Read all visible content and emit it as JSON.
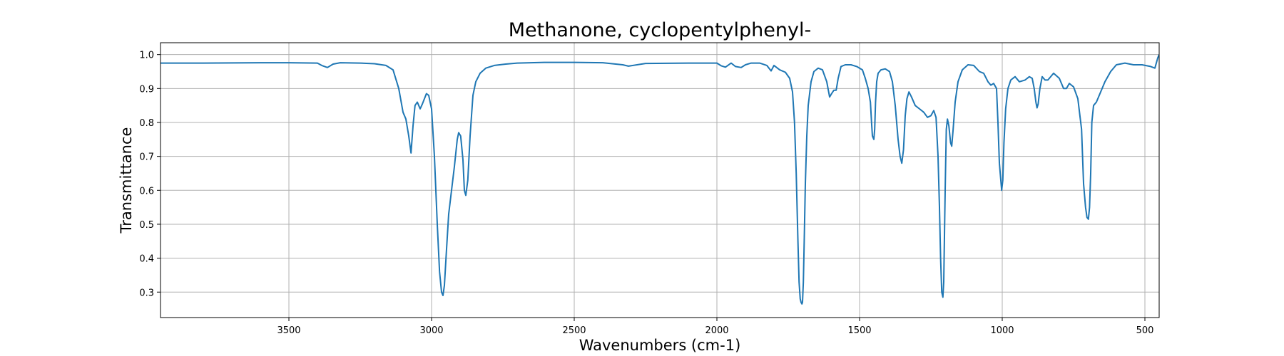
{
  "chart_data": {
    "type": "line",
    "title": "Methanone, cyclopentylphenyl-",
    "xlabel": "Wavenumbers (cm-1)",
    "ylabel": "Transmittance",
    "xlim": [
      3950,
      450
    ],
    "ylim": [
      0.225,
      1.035
    ],
    "x_ticks": [
      3500,
      3000,
      2500,
      2000,
      1500,
      1000,
      500
    ],
    "y_ticks": [
      0.3,
      0.4,
      0.5,
      0.6,
      0.7,
      0.8,
      0.9,
      1.0
    ],
    "grid": true,
    "series": [
      {
        "color": "#1f77b4",
        "x": [
          3950,
          3800,
          3600,
          3500,
          3400,
          3385,
          3365,
          3345,
          3320,
          3250,
          3200,
          3160,
          3135,
          3115,
          3100,
          3090,
          3080,
          3072,
          3065,
          3058,
          3050,
          3040,
          3032,
          3025,
          3018,
          3010,
          3000,
          2990,
          2980,
          2972,
          2965,
          2960,
          2955,
          2948,
          2940,
          2930,
          2920,
          2910,
          2905,
          2898,
          2890,
          2885,
          2880,
          2873,
          2865,
          2855,
          2845,
          2830,
          2810,
          2780,
          2740,
          2700,
          2600,
          2500,
          2400,
          2330,
          2310,
          2250,
          2100,
          2000,
          1985,
          1970,
          1950,
          1935,
          1915,
          1900,
          1880,
          1850,
          1825,
          1810,
          1800,
          1780,
          1760,
          1745,
          1735,
          1728,
          1722,
          1716,
          1712,
          1708,
          1705,
          1702,
          1700,
          1697,
          1694,
          1690,
          1685,
          1680,
          1670,
          1660,
          1645,
          1630,
          1615,
          1605,
          1598,
          1590,
          1582,
          1575,
          1565,
          1550,
          1530,
          1510,
          1490,
          1480,
          1470,
          1462,
          1458,
          1455,
          1450,
          1447,
          1444,
          1440,
          1435,
          1425,
          1410,
          1395,
          1385,
          1375,
          1365,
          1358,
          1352,
          1346,
          1340,
          1334,
          1327,
          1318,
          1305,
          1290,
          1275,
          1262,
          1250,
          1240,
          1232,
          1225,
          1220,
          1216,
          1212,
          1208,
          1205,
          1200,
          1196,
          1192,
          1187,
          1181,
          1177,
          1172,
          1165,
          1155,
          1140,
          1120,
          1100,
          1080,
          1065,
          1050,
          1040,
          1030,
          1020,
          1015,
          1010,
          1005,
          1002,
          998,
          994,
          988,
          980,
          970,
          955,
          940,
          920,
          905,
          895,
          888,
          882,
          878,
          874,
          868,
          860,
          850,
          840,
          820,
          800,
          785,
          775,
          765,
          750,
          735,
          722,
          715,
          708,
          703,
          698,
          694,
          690,
          686,
          680,
          670,
          660,
          640,
          620,
          600,
          570,
          540,
          510,
          480,
          465,
          455,
          450
        ],
        "values": [
          0.975,
          0.975,
          0.976,
          0.976,
          0.975,
          0.968,
          0.962,
          0.972,
          0.976,
          0.975,
          0.973,
          0.968,
          0.955,
          0.9,
          0.83,
          0.81,
          0.76,
          0.71,
          0.79,
          0.85,
          0.86,
          0.84,
          0.855,
          0.87,
          0.885,
          0.88,
          0.84,
          0.7,
          0.5,
          0.36,
          0.3,
          0.29,
          0.32,
          0.42,
          0.53,
          0.6,
          0.67,
          0.75,
          0.77,
          0.76,
          0.69,
          0.6,
          0.585,
          0.63,
          0.76,
          0.88,
          0.92,
          0.945,
          0.96,
          0.968,
          0.972,
          0.975,
          0.977,
          0.977,
          0.976,
          0.97,
          0.966,
          0.974,
          0.975,
          0.975,
          0.967,
          0.963,
          0.975,
          0.965,
          0.962,
          0.97,
          0.975,
          0.975,
          0.968,
          0.952,
          0.968,
          0.955,
          0.948,
          0.93,
          0.89,
          0.8,
          0.65,
          0.45,
          0.33,
          0.28,
          0.27,
          0.265,
          0.27,
          0.33,
          0.45,
          0.62,
          0.76,
          0.85,
          0.92,
          0.95,
          0.96,
          0.955,
          0.92,
          0.875,
          0.885,
          0.895,
          0.895,
          0.93,
          0.965,
          0.97,
          0.97,
          0.965,
          0.955,
          0.93,
          0.9,
          0.86,
          0.8,
          0.76,
          0.75,
          0.78,
          0.86,
          0.92,
          0.945,
          0.955,
          0.958,
          0.95,
          0.92,
          0.85,
          0.75,
          0.7,
          0.68,
          0.72,
          0.82,
          0.87,
          0.89,
          0.875,
          0.85,
          0.84,
          0.83,
          0.815,
          0.82,
          0.835,
          0.815,
          0.7,
          0.55,
          0.4,
          0.3,
          0.285,
          0.33,
          0.6,
          0.78,
          0.81,
          0.79,
          0.74,
          0.73,
          0.78,
          0.86,
          0.92,
          0.955,
          0.97,
          0.968,
          0.95,
          0.945,
          0.92,
          0.91,
          0.915,
          0.9,
          0.8,
          0.68,
          0.63,
          0.6,
          0.63,
          0.74,
          0.84,
          0.9,
          0.925,
          0.935,
          0.92,
          0.925,
          0.935,
          0.93,
          0.9,
          0.86,
          0.843,
          0.855,
          0.9,
          0.935,
          0.925,
          0.925,
          0.945,
          0.93,
          0.9,
          0.9,
          0.915,
          0.905,
          0.87,
          0.78,
          0.62,
          0.55,
          0.52,
          0.515,
          0.55,
          0.65,
          0.8,
          0.85,
          0.86,
          0.88,
          0.92,
          0.95,
          0.97,
          0.975,
          0.97,
          0.97,
          0.965,
          0.96,
          0.99,
          1.0
        ]
      }
    ]
  }
}
